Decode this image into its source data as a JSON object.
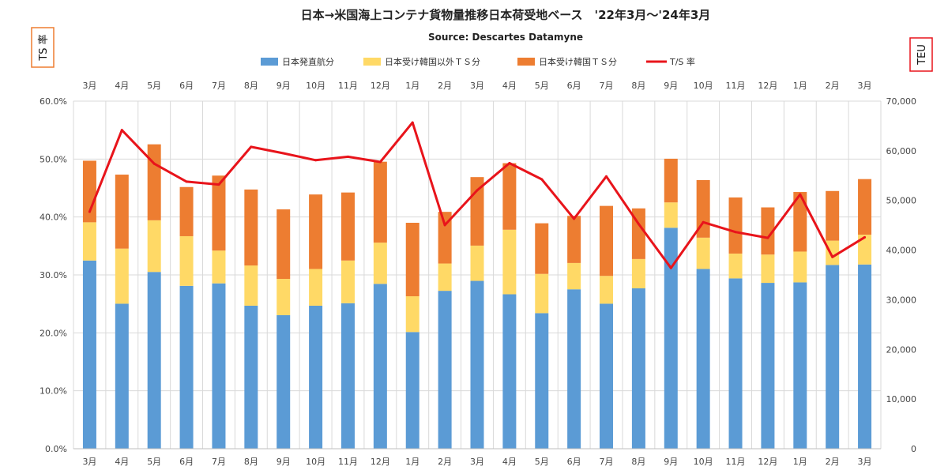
{
  "chart_data": {
    "type": "bar",
    "stacked": true,
    "title": "日本→米国海上コンテナ貨物量推移日本荷受地ベース　'22年3月～'24年3月",
    "subtitle": "Source: Descartes Datamyne",
    "left_axis_label": "TS 率",
    "right_axis_label": "TEU",
    "categories": [
      "3月",
      "4月",
      "5月",
      "6月",
      "7月",
      "8月",
      "9月",
      "10月",
      "11月",
      "12月",
      "1月",
      "2月",
      "3月",
      "4月",
      "5月",
      "6月",
      "7月",
      "8月",
      "9月",
      "10月",
      "11月",
      "12月",
      "1月",
      "2月",
      "3月"
    ],
    "y_left_ticks": [
      "0.0%",
      "10.0%",
      "20.0%",
      "30.0%",
      "40.0%",
      "50.0%",
      "60.0%"
    ],
    "y_right_ticks": [
      "0",
      "10,000",
      "20,000",
      "30,000",
      "40,000",
      "50,000",
      "60,000",
      "70,000"
    ],
    "ylim_left": [
      0,
      60
    ],
    "ylim_right": [
      0,
      70000
    ],
    "grid": true,
    "legend_position": "top",
    "series": [
      {
        "name": "日本発直航分",
        "kind": "bar",
        "axis": "right",
        "color": "#5b9bd5",
        "values": [
          37900,
          29200,
          35600,
          32800,
          33300,
          28800,
          26900,
          28800,
          29300,
          33200,
          23500,
          31800,
          33800,
          31100,
          27300,
          32100,
          29200,
          32300,
          44500,
          36200,
          34300,
          33400,
          33500,
          37000,
          37100
        ]
      },
      {
        "name": "日本受け韓国以外ＴＳ分",
        "kind": "bar",
        "axis": "right",
        "color": "#ffd966",
        "values": [
          7700,
          11100,
          10400,
          10000,
          6600,
          8100,
          7300,
          7400,
          8600,
          8300,
          7200,
          5500,
          7100,
          13000,
          7900,
          5300,
          5600,
          5900,
          5100,
          6300,
          5000,
          5700,
          6200,
          4900,
          6000
        ]
      },
      {
        "name": "日本受け韓国ＴＳ分",
        "kind": "bar",
        "axis": "right",
        "color": "#ed7d31",
        "values": [
          12400,
          14900,
          15300,
          9900,
          15100,
          15300,
          14000,
          15000,
          13700,
          16300,
          14800,
          10400,
          13800,
          13400,
          10200,
          9500,
          14100,
          10200,
          8800,
          11600,
          11300,
          9500,
          12000,
          10000,
          11200
        ]
      },
      {
        "name": "T/S 率",
        "kind": "line",
        "axis": "left",
        "color": "#e8141b",
        "values": [
          40.9,
          55.0,
          49.2,
          46.1,
          45.6,
          52.1,
          51.0,
          49.8,
          50.4,
          49.5,
          56.3,
          38.6,
          44.6,
          49.3,
          46.5,
          39.7,
          47.0,
          38.8,
          31.2,
          39.1,
          37.4,
          36.4,
          43.9,
          33.1,
          36.5
        ]
      }
    ]
  }
}
